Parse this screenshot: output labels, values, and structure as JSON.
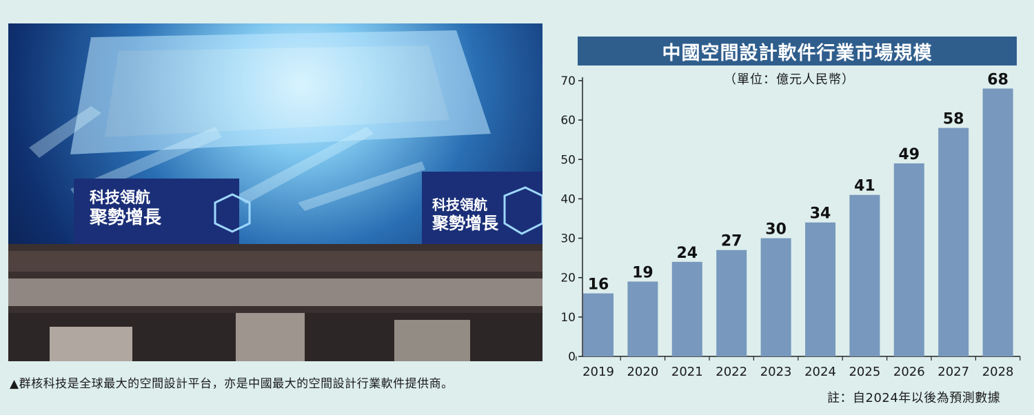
{
  "caption": "▲群核科技是全球最大的空間設計平台，亦是中國最大的空間設計行業軟件提供商。",
  "photo": {
    "screen_text_line1": "科技領航",
    "screen_text_line2": "聚勢增長"
  },
  "chart_data": {
    "type": "bar",
    "title": "中國空間設計軟件行業市場規模",
    "unit": "（單位：億元人民幣）",
    "categories": [
      "2019",
      "2020",
      "2021",
      "2022",
      "2023",
      "2024",
      "2025",
      "2026",
      "2027",
      "2028"
    ],
    "values": [
      16,
      19,
      24,
      27,
      30,
      34,
      41,
      49,
      58,
      68
    ],
    "data_labels": [
      "16",
      "19",
      "24",
      "27",
      "30",
      "34",
      "41",
      "49",
      "58",
      "68"
    ],
    "ylim": [
      0,
      70
    ],
    "yticks": [
      0,
      10,
      20,
      30,
      40,
      50,
      60,
      70
    ],
    "xlabel": "",
    "ylabel": "",
    "grid": false,
    "note": "註：自2024年以後為預測數據",
    "colors": {
      "bar": "#7898bd",
      "title_bg": "#2f5e8d",
      "background": "#ddeeed"
    }
  }
}
